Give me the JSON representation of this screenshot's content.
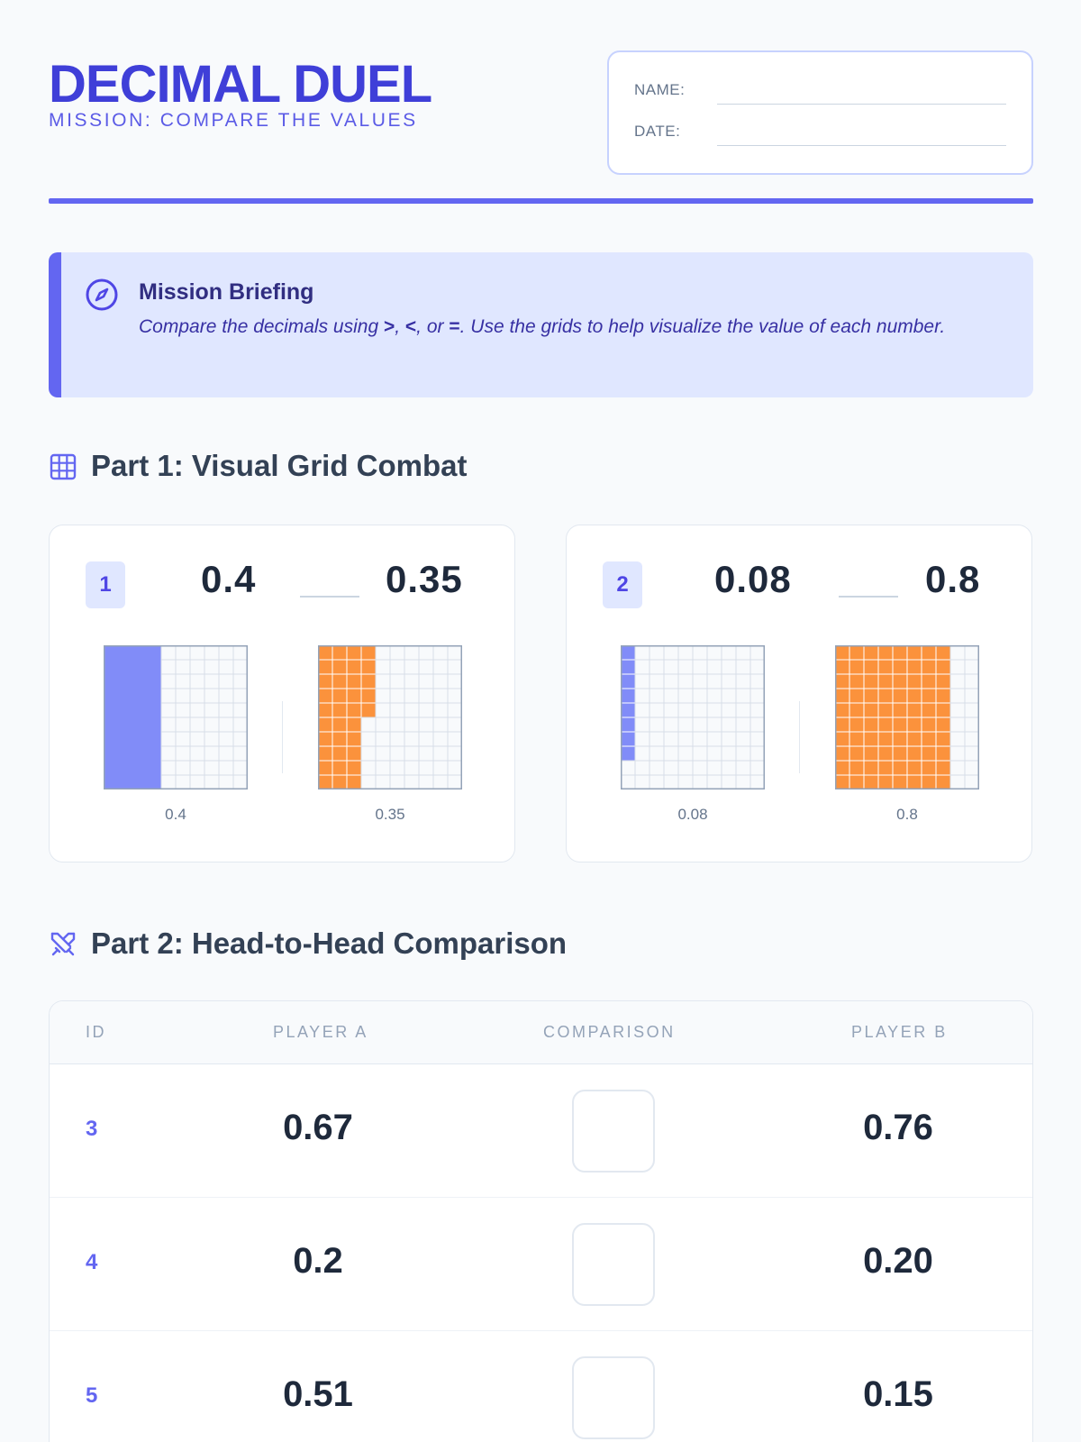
{
  "header": {
    "title": "DECIMAL DUEL",
    "subtitle": "MISSION: COMPARE THE VALUES",
    "name_label": "NAME:",
    "date_label": "DATE:"
  },
  "briefing": {
    "title": "Mission Briefing",
    "text_before": "Compare the decimals using ",
    "sym_gt": ">",
    "sep1": ", ",
    "sym_lt": "<",
    "sep2": ", or ",
    "sym_eq": "=",
    "text_after": ". Use the grids to help visualize the value of each number."
  },
  "part1": {
    "heading": "Part 1: Visual Grid Combat",
    "problems": [
      {
        "id": "1",
        "left_value": "0.4",
        "right_value": "0.35",
        "left_grid": {
          "label": "0.4",
          "shaded": 40
        },
        "right_grid": {
          "label": "0.35",
          "shaded": 35
        }
      },
      {
        "id": "2",
        "left_value": "0.08",
        "right_value": "0.8",
        "left_grid": {
          "label": "0.08",
          "shaded": 8
        },
        "right_grid": {
          "label": "0.8",
          "shaded": 80
        }
      }
    ]
  },
  "part2": {
    "heading": "Part 2: Head-to-Head Comparison",
    "columns": {
      "id": "ID",
      "player_a": "PLAYER A",
      "comparison": "COMPARISON",
      "player_b": "PLAYER B"
    },
    "rows": [
      {
        "id": "3",
        "a": "0.67",
        "b": "0.76"
      },
      {
        "id": "4",
        "a": "0.2",
        "b": "0.20"
      },
      {
        "id": "5",
        "a": "0.51",
        "b": "0.15"
      }
    ]
  },
  "colors": {
    "accent": "#6366f1",
    "title": "#3f3fd8",
    "grid_blue": "#818cf8",
    "grid_orange": "#fb923c"
  }
}
